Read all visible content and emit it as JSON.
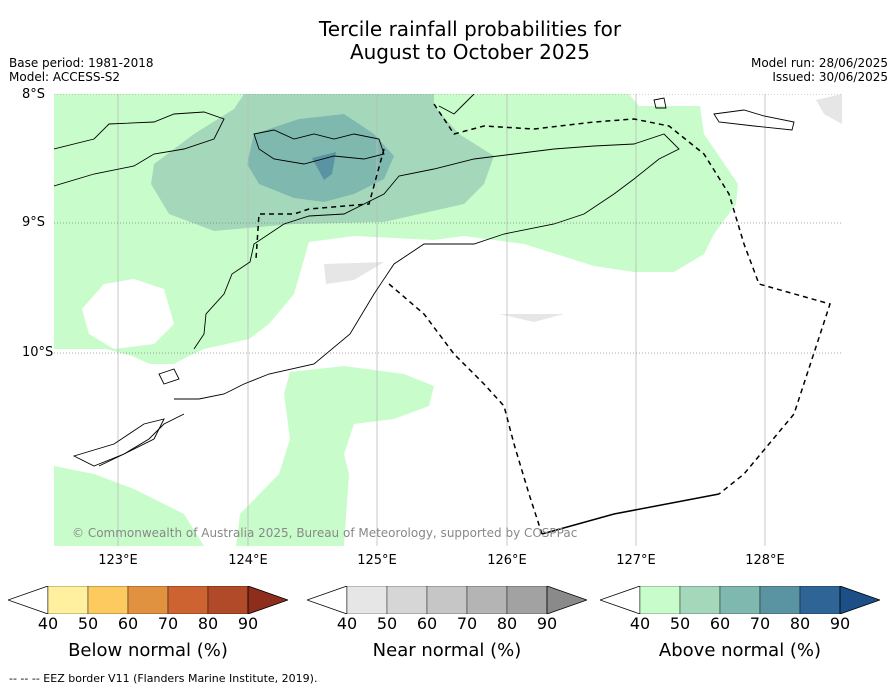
{
  "title_line1": "Tercile rainfall probabilities for",
  "title_line2": "August to October 2025",
  "meta_left": {
    "base_period": "Base period: 1981-2018",
    "model": "Model: ACCESS-S2"
  },
  "meta_right": {
    "model_run": "Model run: 28/06/2025",
    "issued": "Issued: 30/06/2025"
  },
  "latitude_labels": [
    "8°S",
    "9°S",
    "10°S"
  ],
  "longitude_labels": [
    "123°E",
    "124°E",
    "125°E",
    "126°E",
    "127°E",
    "128°E"
  ],
  "copyright": "© Commonwealth of Australia 2025, Bureau of Meteorology, supported by COSPPac",
  "legends": {
    "below": {
      "label": "Below normal (%)",
      "ticks": [
        "40",
        "50",
        "60",
        "70",
        "80",
        "90"
      ],
      "colors": [
        "#ffffff",
        "#fff0a0",
        "#fdca60",
        "#e19240",
        "#cc6331",
        "#b14a28",
        "#8e2d1c"
      ]
    },
    "near": {
      "label": "Near normal (%)",
      "ticks": [
        "40",
        "50",
        "60",
        "70",
        "80",
        "90"
      ],
      "colors": [
        "#ffffff",
        "#e6e6e6",
        "#d6d6d6",
        "#c6c6c6",
        "#b4b4b4",
        "#a2a2a2",
        "#8a8a8a"
      ]
    },
    "above": {
      "label": "Above normal (%)",
      "ticks": [
        "40",
        "50",
        "60",
        "70",
        "80",
        "90"
      ],
      "colors": [
        "#ffffff",
        "#c8fdcb",
        "#a5d8bb",
        "#7fb8af",
        "#5a93a2",
        "#2f6596",
        "#1b4f86"
      ]
    }
  },
  "footer": "--  --  -- EEZ border V11 (Flanders Marine Institute, 2019)."
}
